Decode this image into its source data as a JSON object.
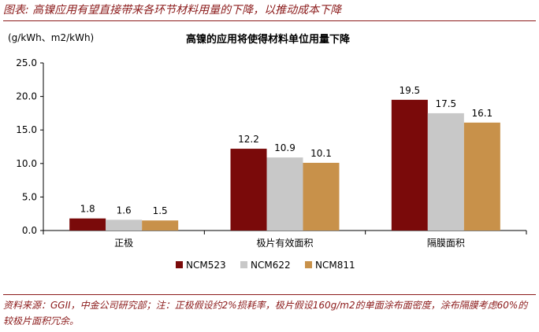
{
  "figure_title": "图表: 高镍应用有望直接带来各环节材料用量的下降，以推动成本下降",
  "source_note": "资料来源：GGII，中金公司研究部；注：正极假设约2%损耗率，极片假设160g/m2的单面涂布面密度，涂布隔膜考虑60%的较极片面积冗余。",
  "colors": {
    "accent": "#8B1A1A",
    "ncm523": "#7A0A0A",
    "ncm622": "#C8C8C8",
    "ncm811": "#C8914A"
  },
  "chart_data": {
    "type": "bar",
    "title": "高镍的应用将使得材料单位用量下降",
    "unit_label": "(g/kWh、m2/kWh)",
    "categories": [
      "正极",
      "极片有效面积",
      "隔膜面积"
    ],
    "series": [
      {
        "name": "NCM523",
        "values": [
          1.8,
          12.2,
          19.5
        ]
      },
      {
        "name": "NCM622",
        "values": [
          1.6,
          10.9,
          17.5
        ]
      },
      {
        "name": "NCM811",
        "values": [
          1.5,
          10.1,
          16.1
        ]
      }
    ],
    "ylim": [
      0,
      25
    ],
    "yticks": [
      "0.0",
      "5.0",
      "10.0",
      "15.0",
      "20.0",
      "25.0"
    ],
    "grid": false,
    "legend_position": "bottom"
  }
}
